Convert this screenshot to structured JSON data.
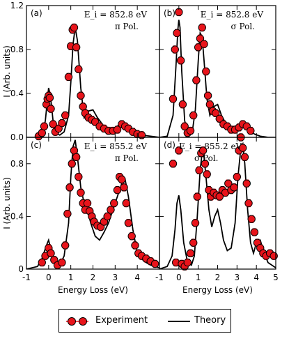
{
  "chart_data": [
    {
      "panel": "(a)",
      "type": "line+scatter",
      "annotation": [
        "E_i = 852.8 eV",
        "π Pol."
      ],
      "xlim": [
        -1,
        5
      ],
      "ylim": [
        0,
        1.2
      ],
      "yticks": [
        "0.0",
        "0.4",
        "0.8",
        "1.2"
      ],
      "ylabel": "I (Arb. units)",
      "theory": {
        "x": [
          -1.0,
          -0.6,
          -0.3,
          -0.15,
          -0.05,
          0.0,
          0.08,
          0.2,
          0.35,
          0.5,
          0.7,
          0.9,
          1.0,
          1.1,
          1.2,
          1.3,
          1.45,
          1.6,
          1.8,
          2.0,
          2.2,
          2.5,
          2.8,
          3.0,
          3.2,
          3.35,
          3.5,
          3.8,
          4.2,
          4.6,
          5.0
        ],
        "y": [
          0.0,
          0.0,
          0.03,
          0.15,
          0.35,
          0.45,
          0.38,
          0.15,
          0.04,
          0.02,
          0.05,
          0.2,
          0.5,
          0.85,
          1.0,
          0.88,
          0.45,
          0.18,
          0.24,
          0.25,
          0.18,
          0.1,
          0.07,
          0.08,
          0.12,
          0.14,
          0.1,
          0.04,
          0.02,
          0.01,
          0.0
        ]
      },
      "experiment": {
        "x": [
          -0.45,
          -0.3,
          -0.2,
          -0.1,
          -0.05,
          0.0,
          0.05,
          0.1,
          0.2,
          0.3,
          0.45,
          0.6,
          0.75,
          0.9,
          1.0,
          1.08,
          1.15,
          1.25,
          1.35,
          1.45,
          1.55,
          1.65,
          1.8,
          1.95,
          2.1,
          2.3,
          2.5,
          2.7,
          2.9,
          3.1,
          3.3,
          3.45,
          3.6,
          3.8,
          4.0,
          4.2
        ],
        "y": [
          0.01,
          0.04,
          0.1,
          0.3,
          0.35,
          0.38,
          0.36,
          0.26,
          0.12,
          0.05,
          0.08,
          0.13,
          0.2,
          0.55,
          0.83,
          0.98,
          1.0,
          0.82,
          0.62,
          0.38,
          0.28,
          0.22,
          0.18,
          0.16,
          0.14,
          0.1,
          0.08,
          0.06,
          0.06,
          0.07,
          0.12,
          0.1,
          0.08,
          0.05,
          0.03,
          0.02
        ]
      }
    },
    {
      "panel": "(b)",
      "type": "line+scatter",
      "annotation": [
        "E_i = 852.8 eV",
        "σ Pol."
      ],
      "xlim": [
        -1,
        5
      ],
      "ylim": [
        0,
        1.2
      ],
      "theory": {
        "x": [
          -1.0,
          -0.6,
          -0.3,
          -0.15,
          -0.05,
          0.0,
          0.06,
          0.15,
          0.3,
          0.5,
          0.7,
          0.85,
          1.0,
          1.1,
          1.2,
          1.3,
          1.45,
          1.6,
          1.8,
          2.0,
          2.2,
          2.5,
          2.8,
          3.0,
          3.2,
          3.4,
          3.6,
          3.9,
          4.2,
          4.6,
          5.0
        ],
        "y": [
          0.0,
          0.01,
          0.2,
          0.65,
          0.98,
          1.07,
          1.0,
          0.6,
          0.15,
          0.03,
          0.06,
          0.25,
          0.7,
          0.95,
          0.92,
          0.7,
          0.35,
          0.2,
          0.28,
          0.3,
          0.2,
          0.1,
          0.06,
          0.07,
          0.12,
          0.11,
          0.07,
          0.03,
          0.01,
          0.0,
          0.0
        ]
      },
      "experiment": {
        "x": [
          -0.3,
          -0.2,
          -0.1,
          0.0,
          0.1,
          0.2,
          0.3,
          0.45,
          0.6,
          0.75,
          0.9,
          1.0,
          1.1,
          1.2,
          1.3,
          1.4,
          1.5,
          1.6,
          1.75,
          1.9,
          2.1,
          2.3,
          2.5,
          2.7,
          2.9,
          3.1,
          3.3,
          3.5,
          3.7
        ],
        "y": [
          0.35,
          0.8,
          0.95,
          1.14,
          0.7,
          0.3,
          0.1,
          0.04,
          0.06,
          0.2,
          0.52,
          0.82,
          0.9,
          1.0,
          0.85,
          0.6,
          0.38,
          0.3,
          0.24,
          0.22,
          0.17,
          0.12,
          0.1,
          0.07,
          0.07,
          0.09,
          0.12,
          0.1,
          0.06
        ]
      }
    },
    {
      "panel": "(c)",
      "type": "line+scatter",
      "annotation": [
        "E_i = 855.2 eV",
        "π Pol."
      ],
      "xlim": [
        -1,
        5
      ],
      "ylim": [
        0,
        1.0
      ],
      "yticks": [
        "0",
        "0.4",
        "0.8"
      ],
      "ylabel": "I (Arb. units)",
      "xticks": [
        "-1",
        "0",
        "1",
        "2",
        "3",
        "4"
      ],
      "xlabel": "Energy Loss (eV)",
      "theory": {
        "x": [
          -1.0,
          -0.5,
          -0.3,
          -0.1,
          0.0,
          0.1,
          0.3,
          0.5,
          0.7,
          0.9,
          1.0,
          1.1,
          1.2,
          1.3,
          1.45,
          1.6,
          1.75,
          1.9,
          2.1,
          2.3,
          2.5,
          2.7,
          2.9,
          3.1,
          3.3,
          3.45,
          3.6,
          3.8,
          4.0,
          4.3,
          4.6,
          5.0
        ],
        "y": [
          0.0,
          0.02,
          0.08,
          0.18,
          0.22,
          0.15,
          0.05,
          0.03,
          0.1,
          0.35,
          0.7,
          0.93,
          0.98,
          0.85,
          0.62,
          0.5,
          0.45,
          0.35,
          0.25,
          0.22,
          0.28,
          0.35,
          0.45,
          0.55,
          0.65,
          0.68,
          0.55,
          0.3,
          0.12,
          0.06,
          0.03,
          0.01
        ]
      },
      "experiment": {
        "x": [
          -0.3,
          -0.15,
          0.0,
          0.1,
          0.25,
          0.4,
          0.6,
          0.75,
          0.85,
          0.95,
          1.05,
          1.15,
          1.25,
          1.35,
          1.45,
          1.55,
          1.65,
          1.75,
          1.85,
          1.95,
          2.05,
          2.2,
          2.35,
          2.5,
          2.65,
          2.8,
          2.95,
          3.1,
          3.2,
          3.3,
          3.4,
          3.5,
          3.6,
          3.75,
          3.9,
          4.05,
          4.2,
          4.4,
          4.6,
          4.8
        ],
        "y": [
          0.05,
          0.1,
          0.16,
          0.12,
          0.07,
          0.03,
          0.05,
          0.18,
          0.42,
          0.62,
          0.8,
          0.9,
          0.85,
          0.7,
          0.58,
          0.5,
          0.45,
          0.5,
          0.44,
          0.4,
          0.36,
          0.33,
          0.32,
          0.36,
          0.4,
          0.45,
          0.5,
          0.6,
          0.7,
          0.68,
          0.62,
          0.5,
          0.35,
          0.25,
          0.18,
          0.12,
          0.1,
          0.08,
          0.06,
          0.04
        ]
      }
    },
    {
      "panel": "(d)",
      "type": "line+scatter",
      "annotation": [
        "E_i = 855.2 eV",
        "σ Pol."
      ],
      "xlim": [
        -1,
        5
      ],
      "ylim": [
        0,
        1.0
      ],
      "xticks": [
        "-1",
        "0",
        "1",
        "2",
        "3",
        "4",
        "5"
      ],
      "xlabel": "Energy Loss (eV)",
      "theory": {
        "x": [
          -1.0,
          -0.6,
          -0.35,
          -0.2,
          -0.1,
          0.0,
          0.1,
          0.25,
          0.45,
          0.65,
          0.8,
          0.95,
          1.1,
          1.2,
          1.3,
          1.4,
          1.55,
          1.7,
          1.85,
          2.0,
          2.15,
          2.3,
          2.5,
          2.7,
          2.9,
          3.05,
          3.2,
          3.3,
          3.4,
          3.55,
          3.7,
          3.85,
          4.0,
          4.2,
          4.4,
          4.6,
          5.0
        ],
        "y": [
          0.0,
          0.02,
          0.1,
          0.3,
          0.5,
          0.56,
          0.45,
          0.2,
          0.05,
          0.03,
          0.1,
          0.4,
          0.75,
          0.88,
          0.85,
          0.7,
          0.45,
          0.32,
          0.4,
          0.45,
          0.35,
          0.22,
          0.14,
          0.16,
          0.35,
          0.7,
          0.92,
          0.95,
          0.8,
          0.45,
          0.2,
          0.12,
          0.2,
          0.22,
          0.12,
          0.05,
          0.01
        ]
      },
      "experiment": {
        "x": [
          -0.3,
          -0.15,
          0.0,
          0.15,
          0.3,
          0.45,
          0.6,
          0.75,
          0.85,
          0.95,
          1.05,
          1.15,
          1.25,
          1.35,
          1.45,
          1.55,
          1.65,
          1.8,
          1.95,
          2.1,
          2.25,
          2.4,
          2.55,
          2.7,
          2.85,
          3.0,
          3.1,
          3.2,
          3.3,
          3.4,
          3.5,
          3.6,
          3.75,
          3.9,
          4.05,
          4.2,
          4.35,
          4.5,
          4.7,
          4.9
        ],
        "y": [
          0.8,
          0.05,
          0.9,
          0.04,
          0.02,
          0.05,
          0.12,
          0.2,
          0.35,
          0.55,
          0.75,
          0.88,
          0.9,
          0.8,
          0.72,
          0.6,
          0.55,
          0.58,
          0.56,
          0.55,
          0.6,
          0.58,
          0.65,
          0.6,
          0.62,
          0.7,
          0.9,
          1.0,
          0.92,
          0.85,
          0.65,
          0.5,
          0.38,
          0.28,
          0.2,
          0.16,
          0.12,
          0.1,
          0.12,
          0.1
        ]
      }
    }
  ],
  "legend": {
    "experiment_label": "Experiment",
    "theory_label": "Theory"
  },
  "colors": {
    "marker_fill": "#e8141b",
    "marker_edge": "#000000",
    "theory_line": "#000000"
  }
}
